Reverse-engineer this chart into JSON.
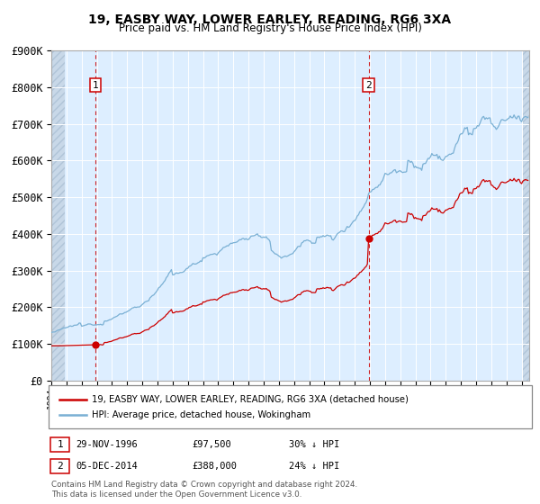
{
  "title": "19, EASBY WAY, LOWER EARLEY, READING, RG6 3XA",
  "subtitle": "Price paid vs. HM Land Registry's House Price Index (HPI)",
  "legend_line1": "19, EASBY WAY, LOWER EARLEY, READING, RG6 3XA (detached house)",
  "legend_line2": "HPI: Average price, detached house, Wokingham",
  "purchase1_date": 1996.917,
  "purchase1_price": 97500,
  "purchase2_date": 2014.917,
  "purchase2_price": 388000,
  "footer_line1": "Contains HM Land Registry data © Crown copyright and database right 2024.",
  "footer_line2": "This data is licensed under the Open Government Licence v3.0.",
  "xmin": 1994.0,
  "xmax": 2025.5,
  "ymin": 0,
  "ymax": 900000,
  "red_color": "#cc0000",
  "blue_color": "#7ab0d4",
  "bg_color": "#ddeeff",
  "hatch_color": "#c8d8e8",
  "grid_color": "#ffffff",
  "spine_color": "#aaaaaa"
}
